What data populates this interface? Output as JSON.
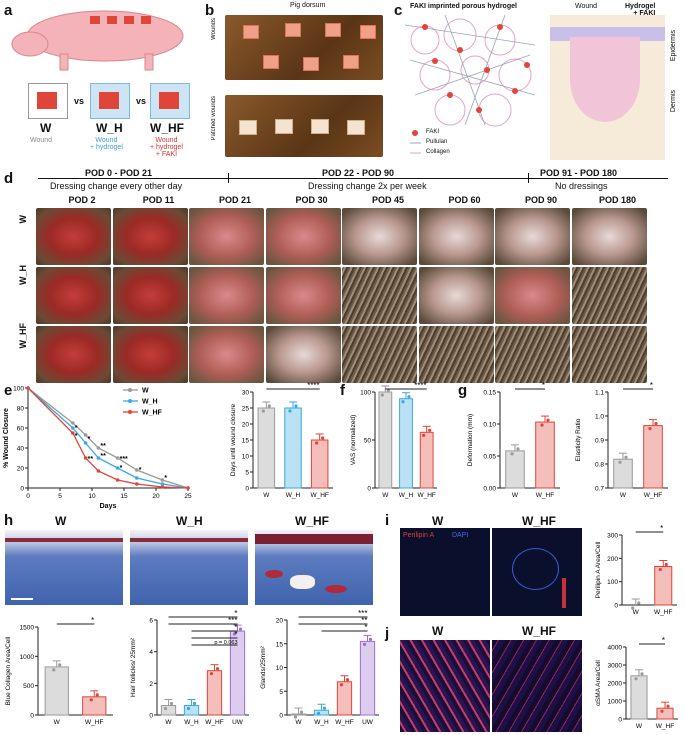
{
  "panels": {
    "a": "a",
    "b": "b",
    "c": "c",
    "d": "d",
    "e": "e",
    "f": "f",
    "g": "g",
    "h": "h",
    "i": "i",
    "j": "j"
  },
  "a": {
    "groups": [
      {
        "name": "W",
        "desc": "Wound",
        "desc_color": "#888888"
      },
      {
        "name": "W_H",
        "desc": "Wound\n+ hydrogel",
        "desc_color": "#3aa0d8"
      },
      {
        "name": "W_HF",
        "desc": "Wound\n+ hydrogel\n+ FAKI",
        "desc_color": "#d8342b"
      }
    ],
    "vs": "vs"
  },
  "b": {
    "title": "Pig dorsum",
    "row1": "Wounds",
    "row2": "Patched wounds"
  },
  "c": {
    "title": "FAKI imprinted porous hydrogel",
    "legend": [
      "FAKI",
      "Pullulan",
      "Collagen"
    ],
    "wound": "Wound",
    "hydrogel": "Hydrogel\n+ FAKI",
    "epidermis": "Epidermis",
    "dermis": "Dermis"
  },
  "d": {
    "phases": [
      {
        "title": "POD 0 - POD 21",
        "sub": "Dressing change every other day"
      },
      {
        "title": "POD 22 - POD 90",
        "sub": "Dressing change 2x per week"
      },
      {
        "title": "POD 91 - POD 180",
        "sub": "No dressings"
      }
    ],
    "timepoints": [
      "POD 2",
      "POD 11",
      "POD 21",
      "POD 30",
      "POD 45",
      "POD 60",
      "POD 90",
      "POD 180"
    ],
    "rows": [
      "W",
      "W_H",
      "W_HF"
    ]
  },
  "e": {
    "ylabel": "% Wound Closure",
    "xlabel": "Days",
    "legend": [
      "W",
      "W_H",
      "W_HF"
    ],
    "bar_ylabel": "Days until wound closure",
    "sig": "****"
  },
  "f": {
    "ylabel": "VAS (normalized)",
    "sig": "****"
  },
  "g": {
    "left_ylabel": "Deformation (mm)",
    "right_ylabel": "Elasticity Ratio",
    "sig": "*"
  },
  "h": {
    "titles": [
      "W",
      "W_H",
      "W_HF"
    ],
    "chart1_ylabel": "Blue Collagen Area/Cell",
    "chart2_ylabel": "Hair follicles/ 25mm²",
    "chart3_ylabel": "Glands/25mm²",
    "p_note": "p = 0.063"
  },
  "i": {
    "titles": [
      "W",
      "W_HF"
    ],
    "stain": "Perilipin A",
    "dapi": "DAPI",
    "ylabel": "Perilipin A Area/Cell"
  },
  "j": {
    "titles": [
      "W",
      "W_HF"
    ],
    "ylabel": "αSMA Area/Cell"
  },
  "colors": {
    "W": "#9a9a9a",
    "W_H": "#3aa9e0",
    "W_HF": "#e0453a",
    "UW": "#9b6fd0"
  },
  "chart_data": [
    {
      "type": "line",
      "panel": "e",
      "title": "",
      "xlabel": "Days",
      "ylabel": "% Wound Closure",
      "x": [
        0,
        7,
        9,
        11,
        14,
        17,
        21,
        25
      ],
      "xlim": [
        0,
        25
      ],
      "ylim": [
        0,
        100
      ],
      "xticks": [
        0,
        5,
        10,
        15,
        20,
        25
      ],
      "yticks": [
        0,
        20,
        40,
        60,
        80,
        100
      ],
      "series": [
        {
          "name": "W",
          "values": [
            100,
            65,
            53,
            40,
            30,
            18,
            8,
            0
          ]
        },
        {
          "name": "W_H",
          "values": [
            100,
            60,
            45,
            30,
            20,
            10,
            4,
            0
          ]
        },
        {
          "name": "W_HF",
          "values": [
            100,
            55,
            30,
            17,
            8,
            4,
            1,
            0
          ]
        }
      ],
      "annotations": [
        "*",
        "*",
        "**",
        "***",
        "**",
        "*",
        "*",
        "*",
        "*",
        "*"
      ]
    },
    {
      "type": "bar",
      "panel": "e",
      "title": "",
      "ylabel": "Days until wound closure",
      "categories": [
        "W",
        "W_H",
        "W_HF"
      ],
      "values": [
        25,
        25,
        15
      ],
      "ylim": [
        0,
        30
      ],
      "yticks": [
        0,
        5,
        10,
        15,
        20,
        25,
        30
      ],
      "significance": "****"
    },
    {
      "type": "bar",
      "panel": "f",
      "title": "",
      "ylabel": "VAS (normalized)",
      "categories": [
        "W",
        "W_H",
        "W_HF"
      ],
      "values": [
        100,
        93,
        58
      ],
      "ylim": [
        0,
        100
      ],
      "yticks": [
        0,
        50,
        100
      ],
      "significance": "****"
    },
    {
      "type": "bar",
      "panel": "g",
      "title": "",
      "ylabel": "Deformation (mm)",
      "categories": [
        "W",
        "W_HF"
      ],
      "values": [
        0.058,
        0.103
      ],
      "ylim": [
        0,
        0.15
      ],
      "yticks": [
        0,
        0.05,
        0.1,
        0.15
      ],
      "significance": "*"
    },
    {
      "type": "bar",
      "panel": "g",
      "title": "",
      "ylabel": "Elasticity Ratio",
      "categories": [
        "W",
        "W_HF"
      ],
      "values": [
        0.82,
        0.96
      ],
      "ylim": [
        0.7,
        1.1
      ],
      "yticks": [
        0.7,
        0.8,
        0.9,
        1.0,
        1.1
      ],
      "significance": "*"
    },
    {
      "type": "bar",
      "panel": "h",
      "title": "",
      "ylabel": "Blue Collagen Area/Cell",
      "categories": [
        "W",
        "W_HF"
      ],
      "values": [
        820,
        310
      ],
      "ylim": [
        0,
        1500
      ],
      "yticks": [
        0,
        500,
        1000,
        1500
      ],
      "significance": "*"
    },
    {
      "type": "bar",
      "panel": "h",
      "title": "",
      "ylabel": "Hair follicles/ 25mm²",
      "categories": [
        "W",
        "W_H",
        "W_HF",
        "UW"
      ],
      "values": [
        0.6,
        0.6,
        2.8,
        5.3
      ],
      "ylim": [
        0,
        6
      ],
      "yticks": [
        0,
        2,
        4,
        6
      ],
      "significance": [
        "*",
        "***",
        "*",
        "*",
        "p = 0.063"
      ]
    },
    {
      "type": "bar",
      "panel": "h",
      "title": "",
      "ylabel": "Glands/25mm²",
      "categories": [
        "W",
        "W_H",
        "W_HF",
        "UW"
      ],
      "values": [
        0.2,
        1.0,
        7.0,
        15.5
      ],
      "ylim": [
        0,
        20
      ],
      "yticks": [
        0,
        5,
        10,
        15,
        20
      ],
      "significance": [
        "***",
        "**",
        "*"
      ]
    },
    {
      "type": "bar",
      "panel": "i",
      "title": "",
      "ylabel": "Perilipin A Area/Cell",
      "categories": [
        "W",
        "W_HF"
      ],
      "values": [
        0,
        165
      ],
      "ylim": [
        0,
        300
      ],
      "yticks": [
        0,
        100,
        200,
        300
      ],
      "significance": "*"
    },
    {
      "type": "bar",
      "panel": "j",
      "title": "",
      "ylabel": "αSMA Area/Cell",
      "categories": [
        "W",
        "W_HF"
      ],
      "values": [
        2400,
        600
      ],
      "ylim": [
        0,
        4000
      ],
      "yticks": [
        0,
        1000,
        2000,
        3000,
        4000
      ],
      "significance": "*"
    }
  ]
}
